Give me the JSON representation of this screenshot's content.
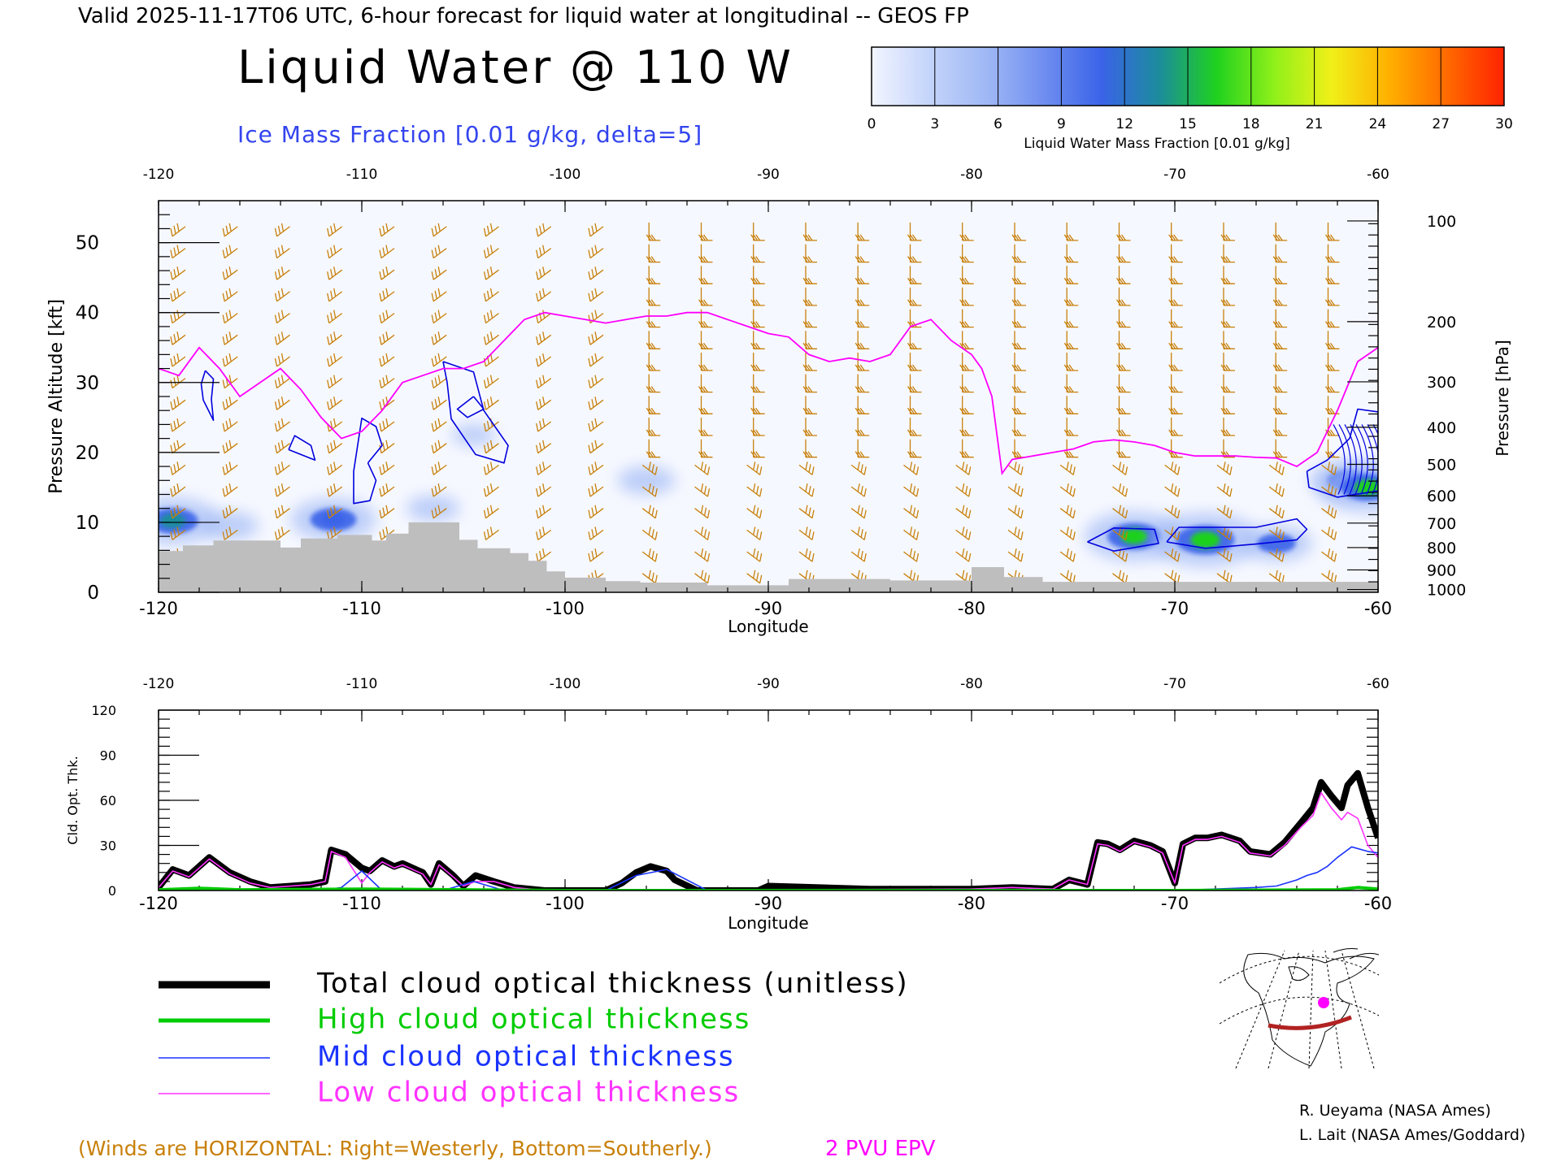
{
  "header": {
    "valid_line": "Valid 2025-11-17T06 UTC, 6-hour forecast for liquid water at longitudinal -- GEOS FP",
    "title": "Liquid Water @ 110 W",
    "subtitle": "Ice Mass Fraction [0.01 g/kg, delta=5]"
  },
  "colorbar": {
    "ticks": [
      "0",
      "3",
      "6",
      "9",
      "12",
      "15",
      "18",
      "21",
      "24",
      "27",
      "30"
    ],
    "label": "Liquid Water Mass Fraction [0.01 g/kg]",
    "colors": [
      "#f2f5ff",
      "#c4d4fa",
      "#9fb8f5",
      "#6f8ef0",
      "#3a63e8",
      "#1c8c9c",
      "#1fd11f",
      "#8ff01a",
      "#f0f018",
      "#ffb000",
      "#ff6a00",
      "#ff2200"
    ]
  },
  "colors": {
    "wind_barb": "#c8800a",
    "epv": "#ff00ff",
    "ice": "#0000dd",
    "terrain": "#bebebe",
    "total": "#000000",
    "high": "#00cc00",
    "mid": "#1a33ff",
    "low": "#ff33ff"
  },
  "chart_data": [
    {
      "type": "heatmap",
      "title": "Liquid Water @ 110 W",
      "xlabel": "Longitude",
      "ylabel": "Pressure Altitude [kft]",
      "ylabel_right": "Pressure [hPa]",
      "xlim": [
        -120,
        -60
      ],
      "ylim": [
        0,
        56
      ],
      "x_ticks": [
        "-120",
        "-110",
        "-100",
        "-90",
        "-80",
        "-70",
        "-60"
      ],
      "x_tick_values": [
        -120,
        -110,
        -100,
        -90,
        -80,
        -70,
        -60
      ],
      "y_ticks": [
        "0",
        "10",
        "20",
        "30",
        "40",
        "50"
      ],
      "y_tick_values": [
        0,
        10,
        20,
        30,
        40,
        50
      ],
      "pressure_ticks": [
        "100",
        "200",
        "300",
        "400",
        "500",
        "600",
        "700",
        "800",
        "900",
        "1000"
      ],
      "pressure_kft": [
        53.1,
        38.7,
        30.1,
        23.6,
        18.3,
        13.8,
        9.9,
        6.4,
        3.2,
        0.4
      ],
      "liquid_water_blobs": [
        {
          "lon": -119.3,
          "kft": 10.2,
          "value": 14
        },
        {
          "lon": -111.4,
          "kft": 10.4,
          "value": 12
        },
        {
          "lon": -116.5,
          "kft": 9.5,
          "value": 6
        },
        {
          "lon": -106.5,
          "kft": 12.0,
          "value": 5
        },
        {
          "lon": -96.0,
          "kft": 16.0,
          "value": 6
        },
        {
          "lon": -104.5,
          "kft": 22.5,
          "value": 3
        },
        {
          "lon": -72.0,
          "kft": 8.0,
          "value": 15
        },
        {
          "lon": -68.5,
          "kft": 7.5,
          "value": 17
        },
        {
          "lon": -65.0,
          "kft": 7.0,
          "value": 9
        },
        {
          "lon": -61.5,
          "kft": 16.0,
          "value": 10
        },
        {
          "lon": -60.5,
          "kft": 15.0,
          "value": 15
        }
      ],
      "epv_2pvu_line": {
        "lon": [
          -120,
          -119,
          -118,
          -117,
          -116,
          -115,
          -114,
          -113,
          -112,
          -111,
          -110,
          -109,
          -108,
          -107,
          -106,
          -105,
          -104,
          -103,
          -102,
          -101,
          -100,
          -99,
          -98,
          -97,
          -96,
          -95,
          -94,
          -93,
          -92,
          -91,
          -90,
          -89,
          -88,
          -87,
          -86,
          -85,
          -84,
          -83,
          -82,
          -81,
          -80,
          -79.5,
          -79,
          -78.5,
          -78,
          -77,
          -76,
          -75,
          -74,
          -73,
          -72,
          -71,
          -70,
          -69,
          -68,
          -67,
          -66,
          -65,
          -64,
          -63,
          -62,
          -61,
          -60
        ],
        "kft": [
          32,
          31,
          35,
          32,
          28,
          30,
          32,
          29,
          25,
          22,
          23,
          26,
          30,
          31,
          32,
          32,
          33,
          36,
          39,
          40,
          39.5,
          39,
          38.5,
          39,
          39.5,
          39.5,
          40,
          40,
          39,
          38,
          37,
          36.5,
          34,
          33,
          33.5,
          33,
          34,
          38,
          39,
          36,
          34,
          32,
          28,
          17,
          19,
          19.5,
          20,
          20.5,
          21.5,
          21.8,
          21.5,
          21,
          20,
          19.5,
          19.5,
          19.5,
          19.3,
          19.2,
          18,
          20,
          26,
          33,
          35
        ]
      },
      "ice_contours": [
        {
          "label": "5",
          "path": [
            [
              -117.7,
              31.7
            ],
            [
              -117.3,
              30.5
            ],
            [
              -117.4,
              27.6
            ],
            [
              -117.3,
              24.6
            ],
            [
              -117.8,
              27.5
            ],
            [
              -117.9,
              29.8
            ],
            [
              -117.7,
              31.7
            ]
          ]
        },
        {
          "label": "5",
          "path": [
            [
              -113.6,
              20.4
            ],
            [
              -113.3,
              22.4
            ],
            [
              -112.5,
              21.0
            ],
            [
              -112.3,
              18.9
            ],
            [
              -113.6,
              20.4
            ]
          ]
        },
        {
          "label": "5",
          "path": [
            [
              -109.7,
              18.5
            ],
            [
              -109.3,
              16
            ],
            [
              -109.6,
              13.1
            ],
            [
              -110.4,
              12.7
            ],
            [
              -110.4,
              17.3
            ],
            [
              -110.0,
              24.9
            ],
            [
              -109.3,
              23.7
            ],
            [
              -109.0,
              21
            ],
            [
              -109.7,
              18.5
            ]
          ]
        },
        {
          "label": "5",
          "path": [
            [
              -106.0,
              33.0
            ],
            [
              -104.5,
              31.5
            ],
            [
              -104.0,
              26.0
            ],
            [
              -102.8,
              21.0
            ],
            [
              -103.0,
              18.5
            ],
            [
              -104.4,
              19.7
            ],
            [
              -105.6,
              24.8
            ],
            [
              -105.8,
              30.0
            ],
            [
              -106.0,
              33.0
            ]
          ]
        },
        {
          "label": "10",
          "path": [
            [
              -104.5,
              28.0
            ],
            [
              -104.0,
              26.2
            ],
            [
              -104.8,
              25.0
            ],
            [
              -105.3,
              26.2
            ],
            [
              -104.5,
              28.0
            ]
          ]
        },
        {
          "label": "5",
          "path": [
            [
              -74.3,
              7.2
            ],
            [
              -73.0,
              9.2
            ],
            [
              -71.0,
              9.0
            ],
            [
              -70.8,
              7.0
            ],
            [
              -73.0,
              5.9
            ],
            [
              -74.3,
              7.2
            ]
          ]
        },
        {
          "label": "5",
          "path": [
            [
              -70.4,
              7.2
            ],
            [
              -69.8,
              9.3
            ],
            [
              -66.0,
              9.3
            ],
            [
              -64.0,
              10.5
            ],
            [
              -63.5,
              9.0
            ],
            [
              -64.0,
              7.5
            ],
            [
              -66.0,
              6.9
            ],
            [
              -68.5,
              6.3
            ],
            [
              -70.4,
              7.2
            ]
          ]
        },
        {
          "label": "5",
          "path": [
            [
              -63.5,
              17.3
            ],
            [
              -62.5,
              18.9
            ],
            [
              -61.4,
              22.0
            ],
            [
              -61.0,
              26.2
            ],
            [
              -60.0,
              25.8
            ],
            [
              -60.0,
              14.5
            ],
            [
              -62.0,
              13.6
            ],
            [
              -63.4,
              15.0
            ],
            [
              -63.5,
              17.3
            ]
          ]
        }
      ],
      "terrain_profile": {
        "lon": [
          -120,
          -118.8,
          -118.8,
          -117.3,
          -117.3,
          -114,
          -114,
          -113,
          -113,
          -111.2,
          -111.2,
          -109.5,
          -109.5,
          -108.8,
          -108.8,
          -107.7,
          -107.7,
          -105.2,
          -105.2,
          -104.3,
          -104.3,
          -102.7,
          -102.7,
          -101.8,
          -101.8,
          -100.9,
          -100.9,
          -100,
          -100,
          -98,
          -98,
          -96.3,
          -96.3,
          -93,
          -93,
          -89,
          -89,
          -84,
          -84,
          -80,
          -80,
          -78.4,
          -78.4,
          -76.5,
          -76.5,
          -60
        ],
        "kft": [
          5.9,
          5.9,
          6.7,
          6.7,
          7.4,
          7.4,
          6.4,
          6.4,
          7.7,
          7.7,
          8.2,
          8.2,
          7.4,
          7.4,
          8.4,
          8.4,
          10.0,
          10.0,
          7.5,
          7.5,
          6.3,
          6.3,
          5.6,
          5.6,
          4.5,
          4.5,
          3.0,
          3.0,
          2.1,
          2.1,
          1.6,
          1.6,
          1.4,
          1.4,
          1.0,
          1.0,
          1.9,
          1.9,
          1.7,
          1.7,
          3.6,
          3.6,
          2.2,
          2.2,
          1.5,
          1.5
        ]
      }
    },
    {
      "type": "line",
      "xlabel": "Longitude",
      "ylabel": "Cld. Opt. Thk.",
      "xlim": [
        -120,
        -60
      ],
      "ylim": [
        0,
        120
      ],
      "x_ticks": [
        "-120",
        "-110",
        "-100",
        "-90",
        "-80",
        "-70",
        "-60"
      ],
      "x_tick_values": [
        -120,
        -110,
        -100,
        -90,
        -80,
        -70,
        -60
      ],
      "y_ticks": [
        "0",
        "30",
        "60",
        "90",
        "120"
      ],
      "y_tick_values": [
        0,
        30,
        60,
        90,
        120
      ],
      "series": [
        {
          "name": "Total cloud optical thickness (unitless)",
          "color": "#000000",
          "x": [
            -120,
            -119.3,
            -118.5,
            -117.5,
            -116.5,
            -115.5,
            -114.5,
            -113.5,
            -112.5,
            -111.8,
            -111.5,
            -110.8,
            -110,
            -109.6,
            -109,
            -108.4,
            -108,
            -107,
            -106.6,
            -106.2,
            -105.5,
            -105,
            -104.4,
            -103.5,
            -102.5,
            -101,
            -100,
            -98,
            -97.2,
            -96.5,
            -95.8,
            -95,
            -94.6,
            -93.5,
            -90.5,
            -90,
            -85,
            -80,
            -78,
            -76,
            -75.2,
            -74.3,
            -73.8,
            -73.3,
            -72.7,
            -72,
            -71.2,
            -70.6,
            -70,
            -69.6,
            -69,
            -68.4,
            -67.7,
            -66.8,
            -66.3,
            -65.3,
            -64.6,
            -63.8,
            -63.2,
            -62.8,
            -62.3,
            -61.8,
            -61.5,
            -61,
            -60.5,
            -60
          ],
          "y": [
            2,
            14,
            10,
            22,
            12,
            6,
            2,
            3,
            4,
            6,
            27,
            24,
            15,
            13,
            20,
            16,
            18,
            12,
            4,
            18,
            10,
            3,
            10,
            6,
            2,
            0,
            0,
            0,
            5,
            12,
            16,
            13,
            7,
            0,
            0,
            3,
            1,
            1,
            2,
            1,
            7,
            4,
            32,
            31,
            27,
            33,
            30,
            26,
            5,
            31,
            35,
            35,
            37,
            33,
            26,
            24,
            32,
            45,
            55,
            72,
            63,
            55,
            70,
            78,
            55,
            35
          ]
        },
        {
          "name": "High cloud optical thickness",
          "color": "#00cc00",
          "x": [
            -120,
            -118,
            -116,
            -110,
            -100,
            -90,
            -80,
            -70,
            -62,
            -61,
            -60
          ],
          "y": [
            0.5,
            1.5,
            0.5,
            1,
            0,
            0,
            0,
            0,
            0.5,
            2,
            1
          ]
        },
        {
          "name": "Mid cloud optical thickness",
          "color": "#1a33ff",
          "x": [
            -120,
            -114,
            -112,
            -111,
            -110,
            -109,
            -106,
            -104.5,
            -103,
            -98,
            -96.5,
            -95,
            -93,
            -70,
            -66,
            -65,
            -64,
            -63.5,
            -63,
            -62.5,
            -62,
            -61.3,
            -60.5,
            -60
          ],
          "y": [
            0,
            0,
            0,
            2,
            13,
            0,
            0,
            6,
            0,
            0,
            10,
            14,
            0,
            0,
            2,
            3,
            7,
            10,
            12,
            16,
            22,
            29,
            26,
            25
          ]
        },
        {
          "name": "Low cloud optical thickness",
          "color": "#ff33ff",
          "x": [
            -120,
            -119.3,
            -118.5,
            -117.5,
            -116.5,
            -115.5,
            -114.5,
            -113.5,
            -112.5,
            -111.8,
            -111.5,
            -110.8,
            -110,
            -109.6,
            -109,
            -108.4,
            -108,
            -107,
            -106.6,
            -106.2,
            -105.5,
            -105,
            -104.4,
            -103.5,
            -102.5,
            -101,
            -80,
            -78,
            -76,
            -75.2,
            -74.3,
            -73.8,
            -73.3,
            -72.7,
            -72,
            -71.2,
            -70.6,
            -70,
            -69.6,
            -69,
            -68.4,
            -67.7,
            -66.8,
            -66.3,
            -65.3,
            -64.6,
            -63.8,
            -63.2,
            -62.8,
            -62.3,
            -61.8,
            -61.5,
            -61,
            -60.5,
            -60
          ],
          "y": [
            2,
            13,
            9,
            21,
            11,
            5,
            2,
            3,
            4,
            6,
            26,
            22,
            5,
            12,
            19,
            15,
            17,
            11,
            4,
            17,
            9,
            3,
            6,
            6,
            2,
            0,
            1,
            2,
            1,
            7,
            4,
            31,
            30,
            26,
            32,
            29,
            25,
            5,
            30,
            34,
            34,
            36,
            32,
            25,
            23,
            30,
            42,
            50,
            65,
            55,
            47,
            52,
            48,
            30,
            22
          ]
        }
      ]
    }
  ],
  "legend": {
    "total": "Total cloud optical thickness (unitless)",
    "high": "High cloud optical thickness",
    "mid": "Mid cloud optical thickness",
    "low": "Low cloud optical thickness"
  },
  "footer": {
    "winds_note": "(Winds are HORIZONTAL: Right=Westerly, Bottom=Southerly.)",
    "epv_label": "2 PVU EPV",
    "credit1": "R. Ueyama (NASA Ames)",
    "credit2": "L. Lait (NASA Ames/Goddard)"
  },
  "inset_map": {
    "marker_color": "#ff00ff",
    "line_color": "#b22222"
  }
}
